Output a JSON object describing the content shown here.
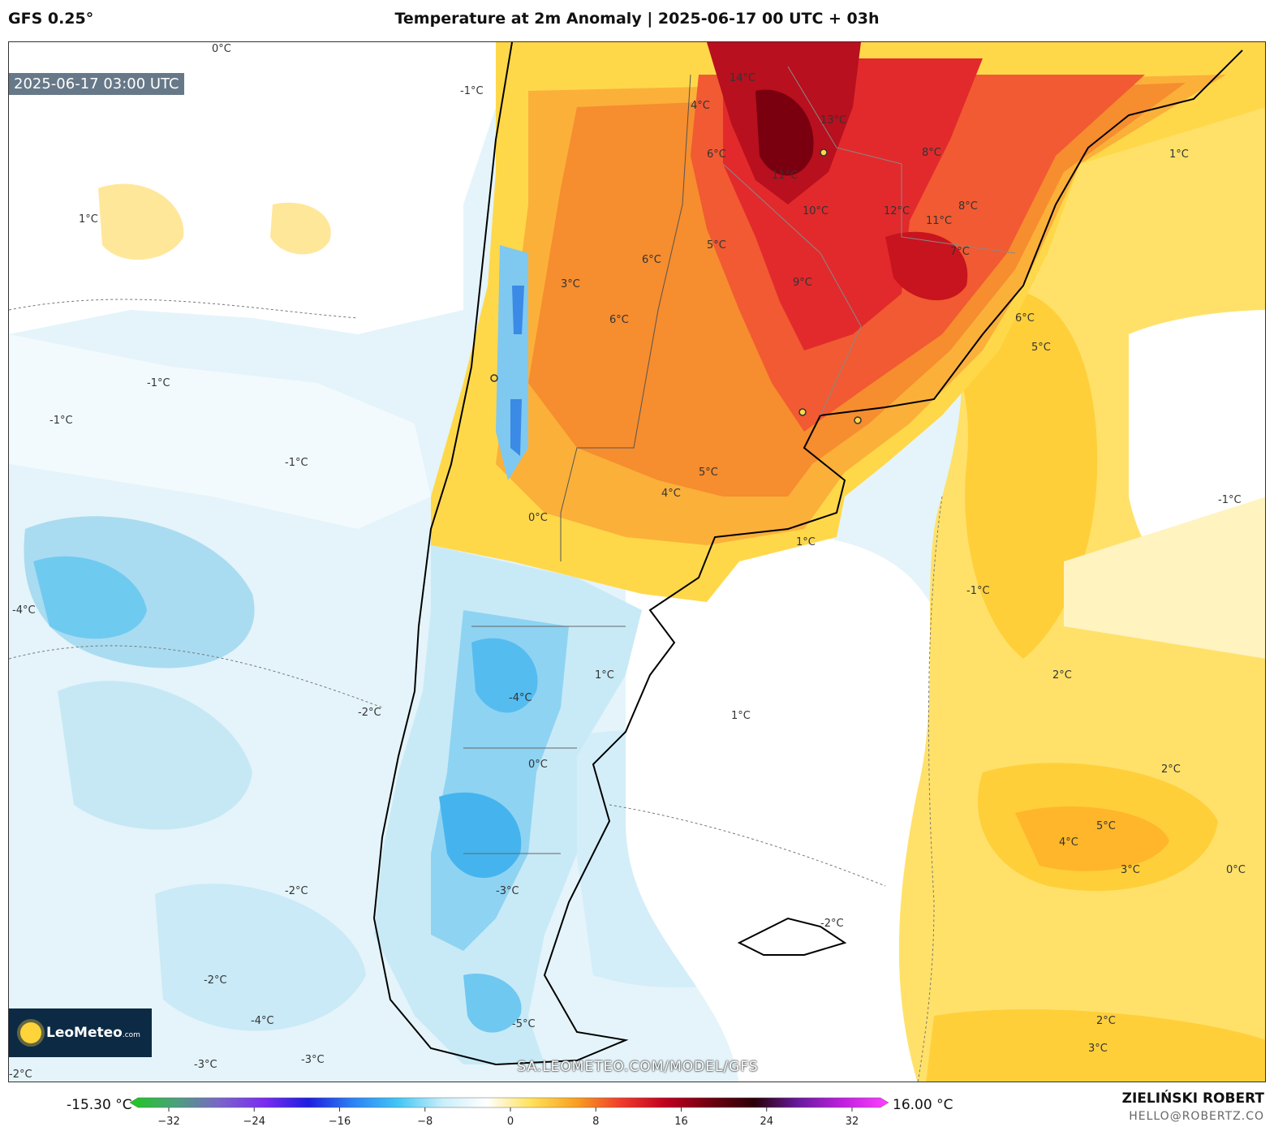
{
  "header": {
    "model": "GFS 0.25°",
    "title": "Temperature at 2m Anomaly | 2025-06-17 00 UTC + 03h"
  },
  "map": {
    "valid_time": "2025-06-17 03:00 UTC",
    "watermark": "SA.LEOMETEO.COM/MODEL/GFS",
    "logo_text": "LeoMeteo",
    "logo_suffix": ".com",
    "contour_labels": [
      "14°C",
      "13°C",
      "12°C",
      "11°C",
      "11°C",
      "10°C",
      "9°C",
      "8°C",
      "8°C",
      "7°C",
      "6°C",
      "6°C",
      "6°C",
      "6°C",
      "5°C",
      "5°C",
      "5°C",
      "5°C",
      "4°C",
      "4°C",
      "4°C",
      "3°C",
      "3°C",
      "3°C",
      "2°C",
      "2°C",
      "2°C",
      "1°C",
      "1°C",
      "1°C",
      "1°C",
      "1°C",
      "0°C",
      "0°C",
      "0°C",
      "0°C",
      "-1°C",
      "-1°C",
      "-1°C",
      "-1°C",
      "-1°C",
      "-1°C",
      "-2°C",
      "-2°C",
      "-2°C",
      "-2°C",
      "-2°C",
      "-3°C",
      "-3°C",
      "-3°C",
      "-4°C",
      "-4°C",
      "-4°C",
      "-5°C"
    ],
    "colors": {
      "warm_strong": "#a4071e",
      "warm": "#f0503a",
      "warm_mid": "#f89a28",
      "warm_light": "#ffd84a",
      "neutral": "#ffffff",
      "cool_light": "#d5eef7",
      "cool": "#9fd8ef",
      "cool_strong": "#37b6ee"
    }
  },
  "colorbar": {
    "min_label": "-15.30 °C",
    "max_label": "16.00 °C",
    "ticks": [
      "−32",
      "−24",
      "−16",
      "−8",
      "0",
      "8",
      "16",
      "24",
      "32"
    ],
    "stops": [
      "#1ec81e",
      "#4aa27a",
      "#7a66c8",
      "#7b2cf0",
      "#1e1ee0",
      "#2c82f5",
      "#40c6f5",
      "#c8eefa",
      "#ffffff",
      "#ffe15a",
      "#f8a020",
      "#f03c2c",
      "#c0001e",
      "#700010",
      "#2a0008",
      "#6a1aa0",
      "#c220e0",
      "#ff40ff"
    ]
  },
  "author": {
    "name": "ZIELIŃSKI ROBERT",
    "email": "HELLO@ROBERTZ.CO"
  }
}
